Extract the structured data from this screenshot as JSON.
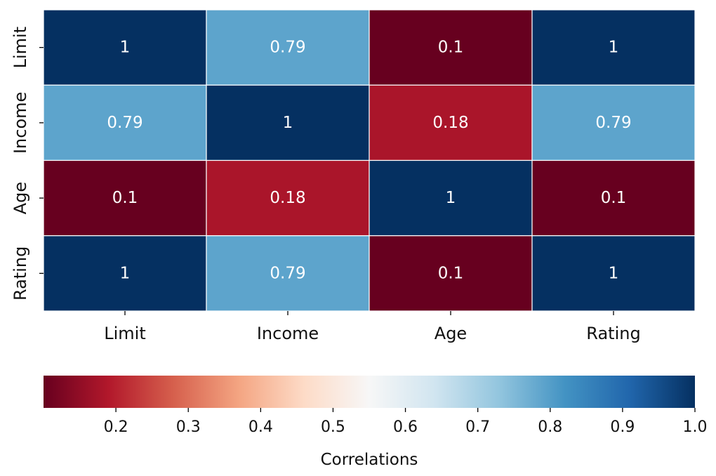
{
  "chart_data": {
    "type": "heatmap",
    "rows": [
      "Limit",
      "Income",
      "Age",
      "Rating"
    ],
    "columns": [
      "Limit",
      "Income",
      "Age",
      "Rating"
    ],
    "values": [
      [
        1,
        0.79,
        0.1,
        1
      ],
      [
        0.79,
        1,
        0.18,
        0.79
      ],
      [
        0.1,
        0.18,
        1,
        0.1
      ],
      [
        1,
        0.79,
        0.1,
        1
      ]
    ],
    "cell_labels": [
      [
        "1",
        "0.79",
        "0.1",
        "1"
      ],
      [
        "0.79",
        "1",
        "0.18",
        "0.79"
      ],
      [
        "0.1",
        "0.18",
        "1",
        "0.1"
      ],
      [
        "1",
        "0.79",
        "0.1",
        "1"
      ]
    ],
    "colormap": "RdBu",
    "color_stops": [
      "#67001f",
      "#b2182b",
      "#d6604d",
      "#f4a582",
      "#fddbc7",
      "#f7f7f7",
      "#d1e5f0",
      "#92c5de",
      "#4393c3",
      "#2166ac",
      "#053061"
    ],
    "colorbar": {
      "label": "Correlations",
      "min": 0.1,
      "max": 1.0,
      "ticks": [
        0.2,
        0.3,
        0.4,
        0.5,
        0.6,
        0.7,
        0.8,
        0.9,
        1.0
      ],
      "tick_labels": [
        "0.2",
        "0.3",
        "0.4",
        "0.5",
        "0.6",
        "0.7",
        "0.8",
        "0.9",
        "1.0"
      ],
      "orientation": "horizontal"
    },
    "cell_label_color": "#ffffff",
    "grid_line_color": "#ffffff"
  }
}
